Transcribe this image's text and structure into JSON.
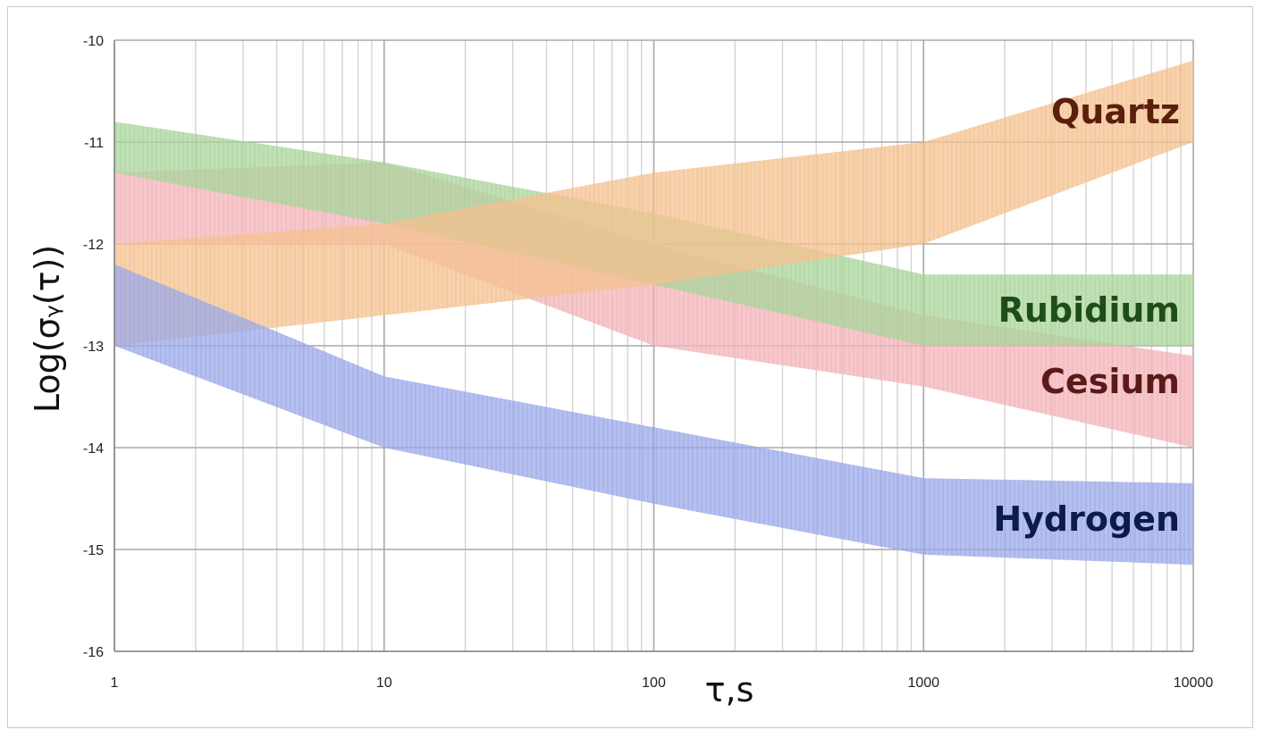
{
  "chart_data": {
    "type": "area",
    "x_scale": "log",
    "xlim": [
      1,
      10000
    ],
    "ylim": [
      -16,
      -10
    ],
    "xlabel": "τ,s",
    "ylabel": "Log(σᵧ(τ))",
    "x_ticks": [
      1,
      10,
      100,
      1000,
      10000
    ],
    "x_tick_labels": [
      "1",
      "10",
      "100",
      "1000",
      "10000"
    ],
    "y_ticks": [
      -10,
      -11,
      -12,
      -13,
      -14,
      -15,
      -16
    ],
    "y_tick_labels": [
      "-10",
      "-11",
      "-12",
      "-13",
      "-14",
      "-15",
      "-16"
    ],
    "grid": true,
    "series": [
      {
        "name": "Cesium",
        "color": "#f2b3b8",
        "upper": [
          [
            1,
            -11.3
          ],
          [
            10,
            -11.2
          ],
          [
            100,
            -12.0
          ],
          [
            1000,
            -12.7
          ],
          [
            10000,
            -13.1
          ]
        ],
        "lower": [
          [
            1,
            -12.0
          ],
          [
            10,
            -12.0
          ],
          [
            100,
            -13.0
          ],
          [
            1000,
            -13.4
          ],
          [
            10000,
            -14.0
          ]
        ]
      },
      {
        "name": "Rubidium",
        "color": "#a8d49a",
        "upper": [
          [
            1,
            -10.8
          ],
          [
            10,
            -11.2
          ],
          [
            100,
            -11.7
          ],
          [
            1000,
            -12.3
          ],
          [
            10000,
            -12.3
          ]
        ],
        "lower": [
          [
            1,
            -11.3
          ],
          [
            10,
            -11.8
          ],
          [
            100,
            -12.4
          ],
          [
            1000,
            -13.0
          ],
          [
            10000,
            -13.0
          ]
        ]
      },
      {
        "name": "Quartz",
        "color": "#f4c08f",
        "upper": [
          [
            1,
            -12.0
          ],
          [
            10,
            -11.8
          ],
          [
            100,
            -11.3
          ],
          [
            1000,
            -11.0
          ],
          [
            10000,
            -10.2
          ]
        ],
        "lower": [
          [
            1,
            -13.0
          ],
          [
            10,
            -12.7
          ],
          [
            100,
            -12.4
          ],
          [
            1000,
            -12.0
          ],
          [
            10000,
            -11.0
          ]
        ]
      },
      {
        "name": "Hydrogen",
        "color": "#9aa7e8",
        "upper": [
          [
            1,
            -12.2
          ],
          [
            10,
            -13.3
          ],
          [
            100,
            -13.8
          ],
          [
            1000,
            -14.3
          ],
          [
            10000,
            -14.35
          ]
        ],
        "lower": [
          [
            1,
            -13.0
          ],
          [
            10,
            -14.0
          ],
          [
            100,
            -14.55
          ],
          [
            1000,
            -15.05
          ],
          [
            10000,
            -15.15
          ]
        ]
      }
    ],
    "annotations": [
      {
        "text": "Quartz",
        "color": "#5a200c",
        "x": 6000,
        "y": -10.7
      },
      {
        "text": "Rubidium",
        "color": "#1f4d1a",
        "x": 6000,
        "y": -12.65
      },
      {
        "text": "Cesium",
        "color": "#5a1a1a",
        "x": 6000,
        "y": -13.35
      },
      {
        "text": "Hydrogen",
        "color": "#0d1a4d",
        "x": 6000,
        "y": -14.7
      }
    ]
  }
}
